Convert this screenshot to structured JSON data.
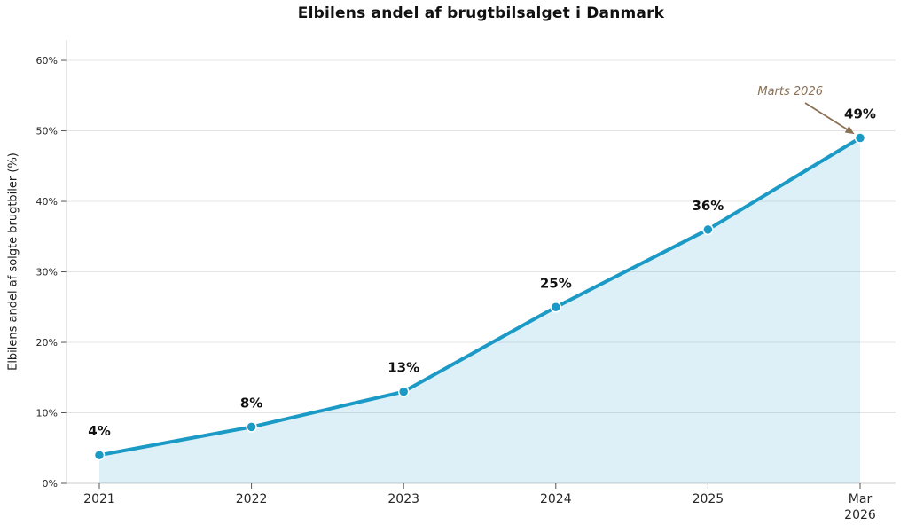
{
  "chart_data": {
    "type": "line",
    "title": "Elbilens andel af brugtbilsalget i Danmark",
    "ylabel": "Elbilens andel af solgte brugtbiler (%)",
    "xlabel": "",
    "categories": [
      "2021",
      "2022",
      "2023",
      "2024",
      "2025",
      "Mar\n2026"
    ],
    "values": [
      4,
      8,
      13,
      25,
      36,
      49
    ],
    "point_labels": [
      "4%",
      "8%",
      "13%",
      "25%",
      "36%",
      "49%"
    ],
    "ytick_values": [
      0,
      10,
      20,
      30,
      40,
      50,
      60
    ],
    "ytick_labels": [
      "0%",
      "10%",
      "20%",
      "30%",
      "40%",
      "50%",
      "60%"
    ],
    "ylim": [
      0,
      62.9
    ],
    "grid": true,
    "legend": "none",
    "area_fill": true,
    "annotation": {
      "text": "Marts 2026",
      "target_category": "Mar 2026",
      "target_value": 49
    },
    "colors": {
      "line": "#1b9ac6",
      "area": "rgba(27,154,198,0.15)",
      "grid": "#e4e4e4",
      "spine": "#cccccc",
      "tick": "#555555",
      "text": "#1a1a1a",
      "annotation": "#8a7156"
    }
  }
}
